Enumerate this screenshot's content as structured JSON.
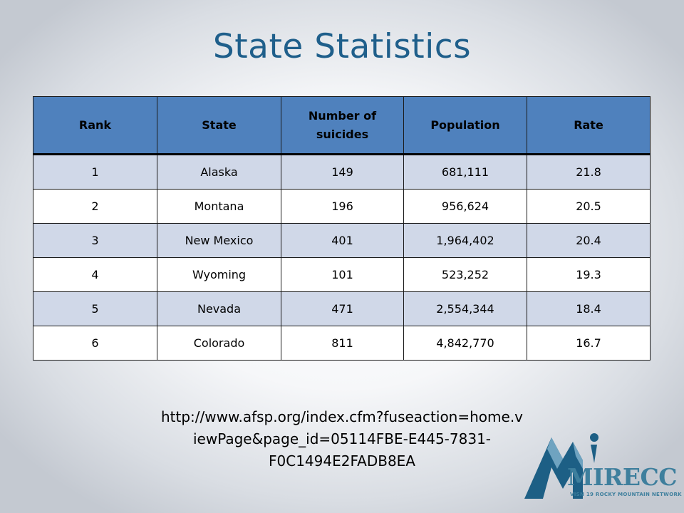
{
  "slide": {
    "title": "State Statistics",
    "source_url_lines": [
      "http://www.afsp.org/index.cfm?fuseaction=home.v",
      "iewPage&page_id=05114FBE-E445-7831-",
      "F0C1494E2FADB8EA"
    ]
  },
  "table": {
    "headers": [
      "Rank",
      "State",
      "Number of suicides",
      "Population",
      "Rate"
    ],
    "rows": [
      [
        "1",
        "Alaska",
        "149",
        "681,111",
        "21.8"
      ],
      [
        "2",
        "Montana",
        "196",
        "956,624",
        "20.5"
      ],
      [
        "3",
        "New Mexico",
        "401",
        "1,964,402",
        "20.4"
      ],
      [
        "4",
        "Wyoming",
        "101",
        "523,252",
        "19.3"
      ],
      [
        "5",
        "Nevada",
        "471",
        "2,554,344",
        "18.4"
      ],
      [
        "6",
        "Colorado",
        "811",
        "4,842,770",
        "16.7"
      ]
    ],
    "header_color": "#4f81bd",
    "row_band_color": "#d0d8e8"
  },
  "logo": {
    "wordmark": "MIRECC",
    "tagline": "VISN 19 ROCKY MOUNTAIN NETWORK",
    "colors": {
      "mountain": "#1d5f85",
      "text": "#3e7f9d"
    }
  }
}
